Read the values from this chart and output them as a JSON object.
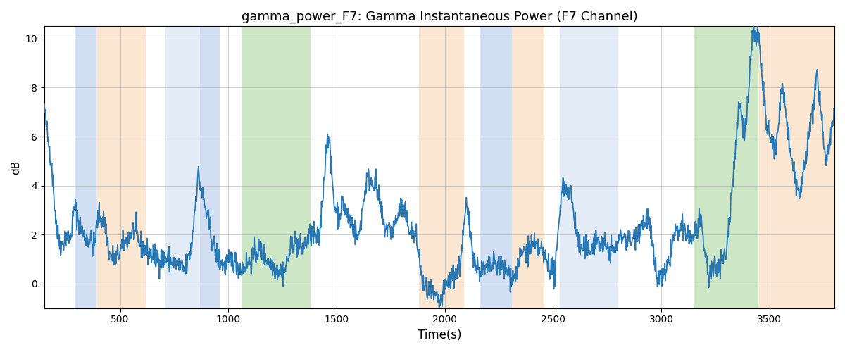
{
  "title": "gamma_power_F7: Gamma Instantaneous Power (F7 Channel)",
  "xlabel": "Time(s)",
  "ylabel": "dB",
  "xlim": [
    150,
    3800
  ],
  "ylim": [
    -1.0,
    10.5
  ],
  "yticks": [
    0,
    2,
    4,
    6,
    8,
    10
  ],
  "xticks": [
    500,
    1000,
    1500,
    2000,
    2500,
    3000,
    3500
  ],
  "line_color": "#2878b5",
  "line_width": 1.3,
  "bg_color": "#ffffff",
  "grid_color": "#b0b0b0",
  "bands": [
    {
      "xmin": 290,
      "xmax": 390,
      "color": "#aec6e8",
      "alpha": 0.55
    },
    {
      "xmin": 390,
      "xmax": 620,
      "color": "#f5c89a",
      "alpha": 0.45
    },
    {
      "xmin": 710,
      "xmax": 870,
      "color": "#aec6e8",
      "alpha": 0.35
    },
    {
      "xmin": 870,
      "xmax": 960,
      "color": "#aec6e8",
      "alpha": 0.55
    },
    {
      "xmin": 1060,
      "xmax": 1380,
      "color": "#90c97f",
      "alpha": 0.45
    },
    {
      "xmin": 1880,
      "xmax": 2090,
      "color": "#f5c89a",
      "alpha": 0.45
    },
    {
      "xmin": 2160,
      "xmax": 2310,
      "color": "#aec6e8",
      "alpha": 0.55
    },
    {
      "xmin": 2310,
      "xmax": 2460,
      "color": "#f5c89a",
      "alpha": 0.45
    },
    {
      "xmin": 2530,
      "xmax": 2800,
      "color": "#aec6e8",
      "alpha": 0.35
    },
    {
      "xmin": 3150,
      "xmax": 3450,
      "color": "#90c97f",
      "alpha": 0.45
    },
    {
      "xmin": 3450,
      "xmax": 3800,
      "color": "#f5c89a",
      "alpha": 0.45
    }
  ],
  "seed": 42,
  "figsize": [
    12.0,
    5.0
  ],
  "dpi": 100
}
